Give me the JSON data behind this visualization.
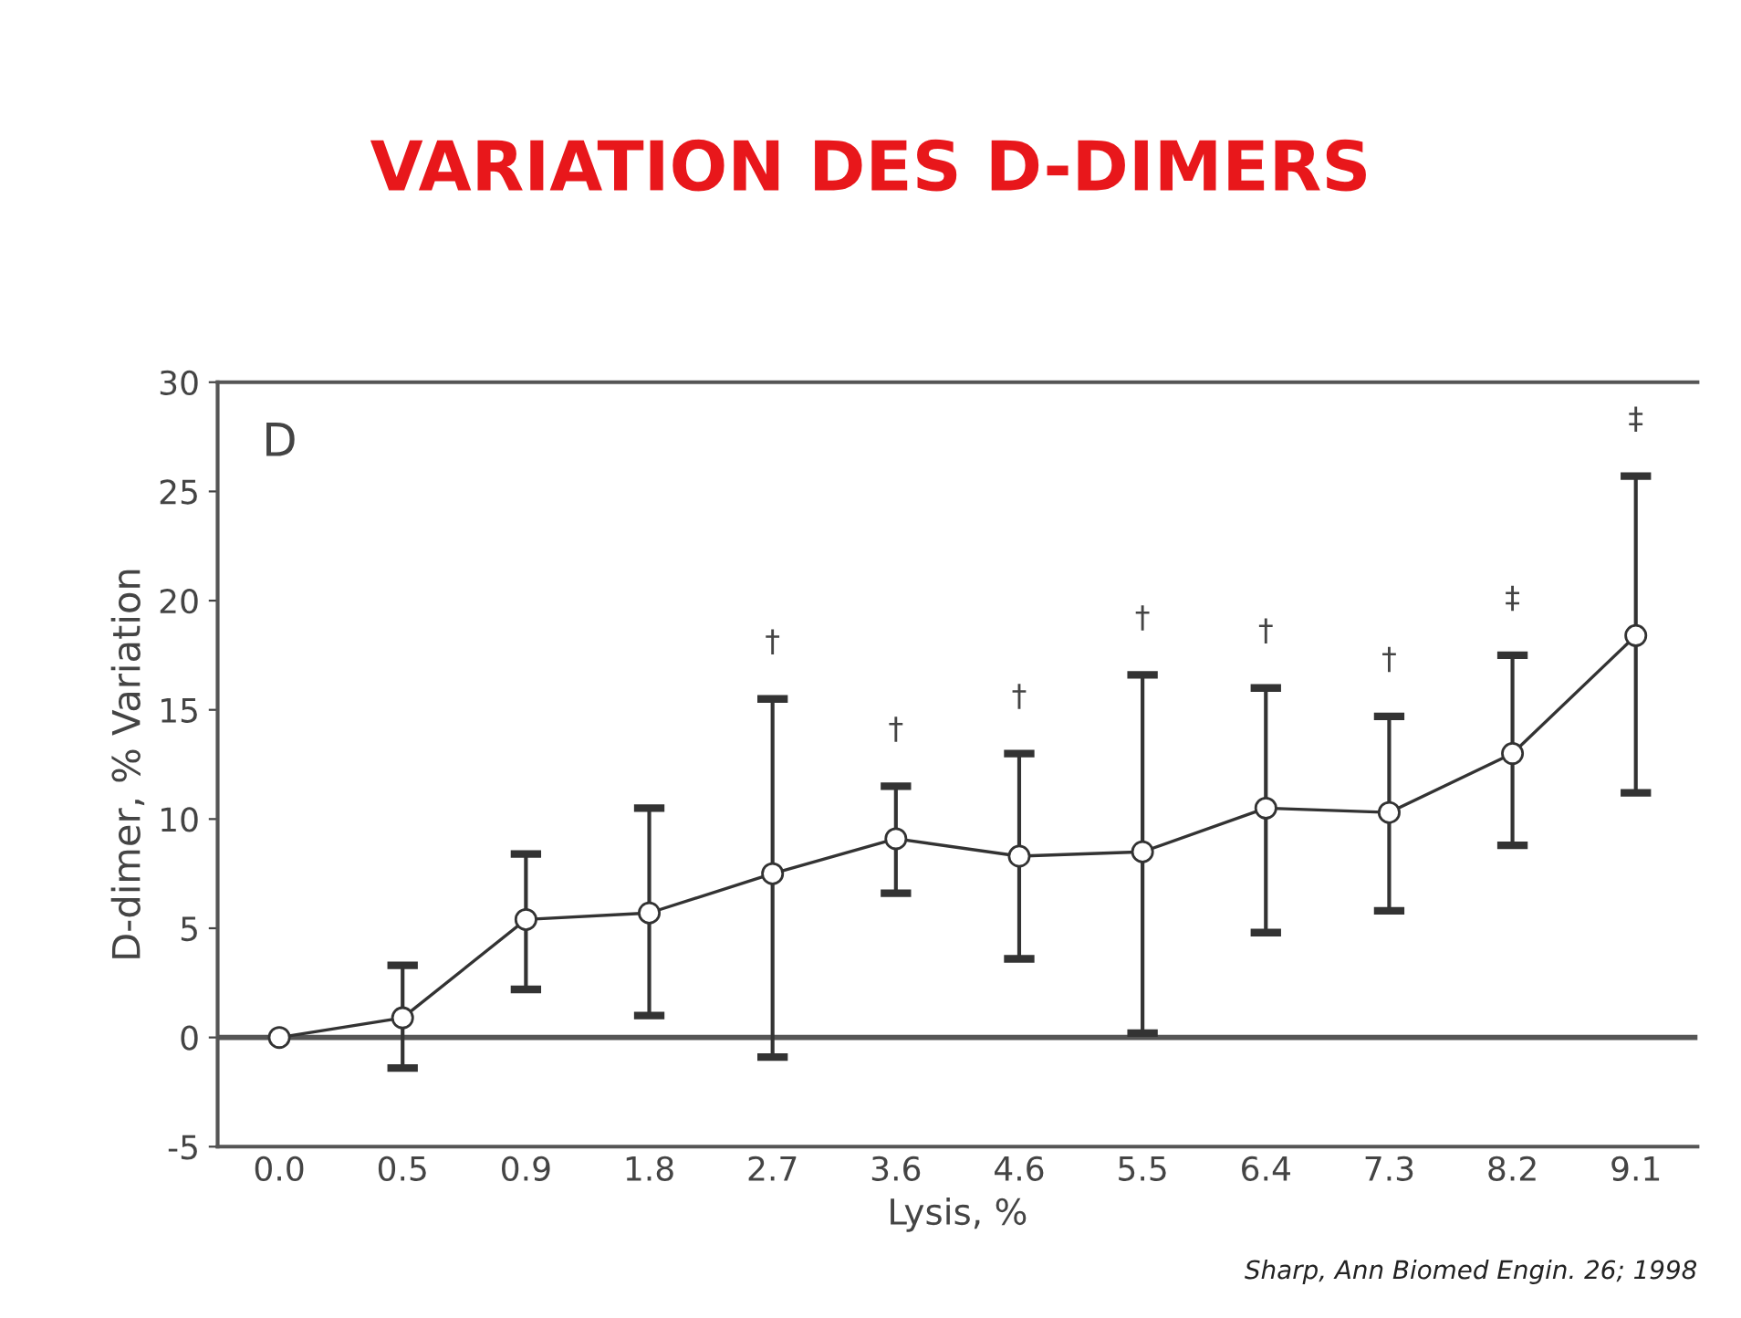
{
  "chart_data": {
    "type": "line",
    "title": "VARIATION DES D-DIMERS",
    "xlabel": "Lysis, %",
    "ylabel": "D-dimer, % Variation",
    "categories": [
      "0.0",
      "0.5",
      "0.9",
      "1.8",
      "2.7",
      "3.6",
      "4.6",
      "5.5",
      "6.4",
      "7.3",
      "8.2",
      "9.1"
    ],
    "series": [
      {
        "color": "#333333",
        "values": [
          0,
          0.9,
          5.4,
          5.7,
          7.5,
          9.1,
          8.3,
          8.5,
          10.5,
          10.3,
          13.0,
          18.4
        ],
        "errors": [
          null,
          [
            -1.4,
            3.3
          ],
          [
            2.2,
            8.4
          ],
          [
            1.0,
            10.5
          ],
          [
            -0.9,
            15.5
          ],
          [
            6.6,
            11.5
          ],
          [
            3.6,
            13.0
          ],
          [
            0.2,
            16.6
          ],
          [
            4.8,
            16.0
          ],
          [
            5.8,
            14.7
          ],
          [
            8.8,
            17.5
          ],
          [
            11.2,
            25.7
          ]
        ]
      }
    ],
    "marker": "circle",
    "line_style": "solid",
    "ylim": [
      -5,
      30
    ],
    "yticks": [
      -5,
      0,
      5,
      10,
      15,
      20,
      25,
      30
    ],
    "grid": false,
    "legend": false,
    "ref_lines": [
      {
        "axis": "y",
        "value": 0,
        "color": "#555555"
      }
    ],
    "annotations": [
      "D",
      {
        "text": "†",
        "x": "2.7",
        "y": 15.5
      },
      {
        "text": "†",
        "x": "3.6",
        "y": 11.5
      },
      {
        "text": "†",
        "x": "4.6",
        "y": 13.0
      },
      {
        "text": "†",
        "x": "5.5",
        "y": 16.6
      },
      {
        "text": "†",
        "x": "6.4",
        "y": 16.0
      },
      {
        "text": "†",
        "x": "7.3",
        "y": 14.7
      },
      {
        "text": "‡",
        "x": "8.2",
        "y": 17.5
      },
      {
        "text": "‡",
        "x": "9.1",
        "y": 25.7
      },
      "Sharp, Ann Biomed Engin. 26; 1998"
    ]
  }
}
